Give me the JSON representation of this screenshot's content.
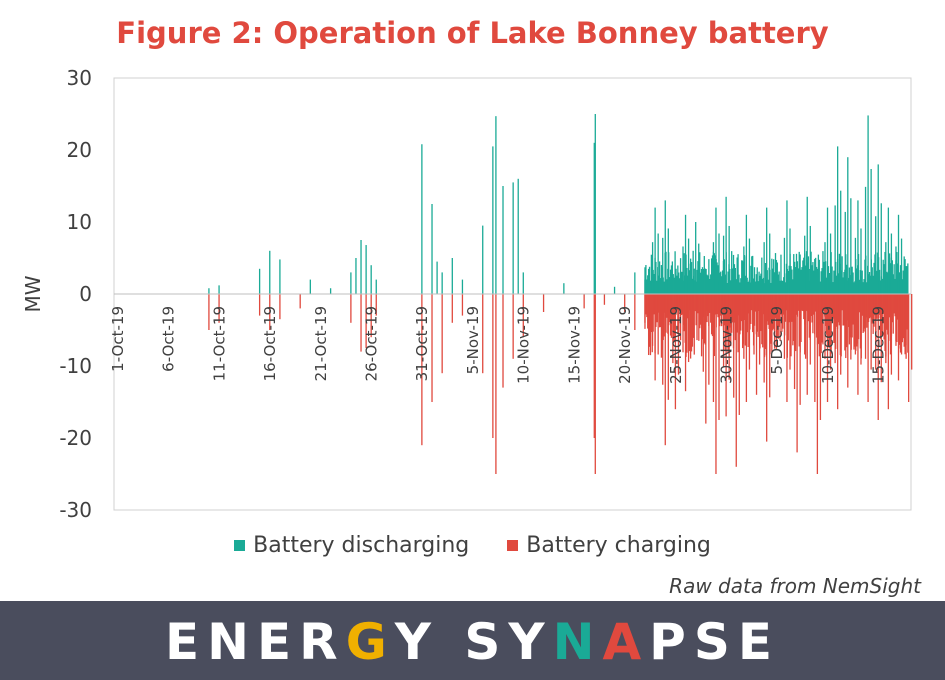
{
  "title": "Figure 2: Operation of Lake Bonney battery",
  "source_note": "Raw data from NemSight",
  "brand": {
    "text": "ENERGY SYNAPSE",
    "letters": [
      {
        "ch": "E",
        "color": "#ffffff"
      },
      {
        "ch": "N",
        "color": "#ffffff"
      },
      {
        "ch": "E",
        "color": "#ffffff"
      },
      {
        "ch": "R",
        "color": "#ffffff"
      },
      {
        "ch": "G",
        "color": "#f0b000"
      },
      {
        "ch": "Y",
        "color": "#ffffff"
      },
      {
        "ch": " ",
        "color": "#ffffff"
      },
      {
        "ch": "S",
        "color": "#ffffff"
      },
      {
        "ch": "Y",
        "color": "#ffffff"
      },
      {
        "ch": "N",
        "color": "#1aaa96"
      },
      {
        "ch": "A",
        "color": "#e0493e"
      },
      {
        "ch": "P",
        "color": "#ffffff"
      },
      {
        "ch": "S",
        "color": "#ffffff"
      },
      {
        "ch": "E",
        "color": "#ffffff"
      }
    ]
  },
  "chart_data": {
    "type": "bar",
    "ylabel": "MW",
    "xlabel": "",
    "ylim": [
      -30,
      30
    ],
    "yticks": [
      30,
      20,
      10,
      0,
      -10,
      -20,
      -30
    ],
    "x_range": [
      "2019-10-01",
      "2019-12-18"
    ],
    "x_tick_labels": [
      "1-Oct-19",
      "6-Oct-19",
      "11-Oct-19",
      "16-Oct-19",
      "21-Oct-19",
      "26-Oct-19",
      "31-Oct-19",
      "5-Nov-19",
      "10-Nov-19",
      "15-Nov-19",
      "20-Nov-19",
      "25-Nov-19",
      "30-Nov-19",
      "5-Dec-19",
      "10-Dec-19",
      "15-Dec-19"
    ],
    "grid": false,
    "legend_position": "bottom",
    "series": [
      {
        "name": "Battery discharging",
        "color": "#1aaa96",
        "points": [
          [
            "2019-10-10",
            0.8
          ],
          [
            "2019-10-11",
            1.2
          ],
          [
            "2019-10-15",
            3.5
          ],
          [
            "2019-10-16",
            6.0
          ],
          [
            "2019-10-17",
            4.8
          ],
          [
            "2019-10-20",
            2.0
          ],
          [
            "2019-10-22",
            0.8
          ],
          [
            "2019-10-24",
            3.0
          ],
          [
            "2019-10-24.5",
            5.0
          ],
          [
            "2019-10-25",
            7.5
          ],
          [
            "2019-10-25.5",
            6.8
          ],
          [
            "2019-10-26",
            4.0
          ],
          [
            "2019-10-26.5",
            2.0
          ],
          [
            "2019-10-31",
            20.8
          ],
          [
            "2019-11-01",
            12.5
          ],
          [
            "2019-11-01.5",
            4.5
          ],
          [
            "2019-11-02",
            3.0
          ],
          [
            "2019-11-03",
            5.0
          ],
          [
            "2019-11-04",
            2.0
          ],
          [
            "2019-11-06",
            9.5
          ],
          [
            "2019-11-07",
            20.5
          ],
          [
            "2019-11-07.3",
            24.7
          ],
          [
            "2019-11-08",
            15.0
          ],
          [
            "2019-11-09",
            15.5
          ],
          [
            "2019-11-09.5",
            16.0
          ],
          [
            "2019-11-10",
            3.0
          ],
          [
            "2019-11-14",
            1.5
          ],
          [
            "2019-11-17",
            21.0
          ],
          [
            "2019-11-17.1",
            25.0
          ],
          [
            "2019-11-19",
            1.0
          ],
          [
            "2019-11-21",
            3.0
          ],
          [
            "2019-11-22",
            2.0
          ]
        ],
        "dense_period": {
          "from": "2019-11-22",
          "to": "2019-12-18",
          "typical_max": 6.0,
          "peaks": [
            [
              "2019-11-23",
              12.0
            ],
            [
              "2019-11-24",
              13.0
            ],
            [
              "2019-11-26",
              11.0
            ],
            [
              "2019-11-27",
              10.0
            ],
            [
              "2019-11-29",
              12.0
            ],
            [
              "2019-11-30",
              13.5
            ],
            [
              "2019-12-02",
              11.0
            ],
            [
              "2019-12-04",
              12.0
            ],
            [
              "2019-12-06",
              13.0
            ],
            [
              "2019-12-08",
              13.5
            ],
            [
              "2019-12-10",
              12.0
            ],
            [
              "2019-12-11",
              20.5
            ],
            [
              "2019-12-12",
              19.0
            ],
            [
              "2019-12-13",
              13.0
            ],
            [
              "2019-12-14",
              24.8
            ],
            [
              "2019-12-15",
              18.0
            ],
            [
              "2019-12-16",
              12.0
            ],
            [
              "2019-12-17",
              11.0
            ]
          ]
        }
      },
      {
        "name": "Battery charging",
        "color": "#e0493e",
        "points": [
          [
            "2019-10-10",
            -5.0
          ],
          [
            "2019-10-11",
            -4.0
          ],
          [
            "2019-10-15",
            -3.0
          ],
          [
            "2019-10-16",
            -5.0
          ],
          [
            "2019-10-17",
            -3.5
          ],
          [
            "2019-10-19",
            -2.0
          ],
          [
            "2019-10-24",
            -4.0
          ],
          [
            "2019-10-25",
            -8.0
          ],
          [
            "2019-10-25.5",
            -7.5
          ],
          [
            "2019-10-26",
            -6.0
          ],
          [
            "2019-10-26.5",
            -3.0
          ],
          [
            "2019-10-31",
            -21.0
          ],
          [
            "2019-11-01",
            -15.0
          ],
          [
            "2019-11-02",
            -11.0
          ],
          [
            "2019-11-03",
            -4.0
          ],
          [
            "2019-11-04",
            -3.0
          ],
          [
            "2019-11-06",
            -11.0
          ],
          [
            "2019-11-07",
            -20.0
          ],
          [
            "2019-11-07.3",
            -25.0
          ],
          [
            "2019-11-08",
            -13.0
          ],
          [
            "2019-11-09",
            -9.0
          ],
          [
            "2019-11-10",
            -6.0
          ],
          [
            "2019-11-12",
            -2.5
          ],
          [
            "2019-11-16",
            -2.0
          ],
          [
            "2019-11-17",
            -20.0
          ],
          [
            "2019-11-17.1",
            -25.0
          ],
          [
            "2019-11-18",
            -1.5
          ],
          [
            "2019-11-20",
            -2.5
          ],
          [
            "2019-11-21",
            -5.0
          ],
          [
            "2019-11-22",
            -4.0
          ]
        ],
        "dense_period": {
          "from": "2019-11-22",
          "to": "2019-12-18",
          "typical_min": -9.0,
          "peaks": [
            [
              "2019-11-23",
              -12.0
            ],
            [
              "2019-11-24",
              -21.0
            ],
            [
              "2019-11-25",
              -16.0
            ],
            [
              "2019-11-26",
              -13.5
            ],
            [
              "2019-11-28",
              -18.0
            ],
            [
              "2019-11-29",
              -25.0
            ],
            [
              "2019-11-30",
              -17.0
            ],
            [
              "2019-12-01",
              -24.0
            ],
            [
              "2019-12-02",
              -15.0
            ],
            [
              "2019-12-03",
              -14.0
            ],
            [
              "2019-12-04",
              -20.5
            ],
            [
              "2019-12-06",
              -15.0
            ],
            [
              "2019-12-07",
              -22.0
            ],
            [
              "2019-12-08",
              -14.0
            ],
            [
              "2019-12-09",
              -25.0
            ],
            [
              "2019-12-10",
              -15.0
            ],
            [
              "2019-12-11",
              -16.0
            ],
            [
              "2019-12-12",
              -13.0
            ],
            [
              "2019-12-13",
              -14.0
            ],
            [
              "2019-12-14",
              -15.0
            ],
            [
              "2019-12-15",
              -17.5
            ],
            [
              "2019-12-16",
              -16.0
            ],
            [
              "2019-12-17",
              -12.0
            ],
            [
              "2019-12-18",
              -15.0
            ]
          ]
        }
      }
    ]
  }
}
